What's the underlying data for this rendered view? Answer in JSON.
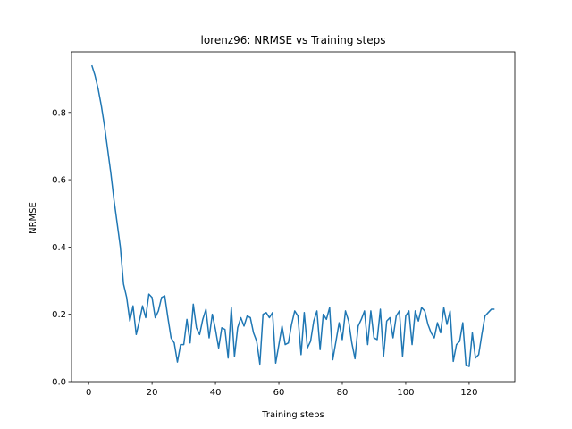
{
  "chart_data": {
    "type": "line",
    "title": "lorenz96: NRMSE vs Training steps",
    "xlabel": "Training steps",
    "ylabel": "NRMSE",
    "xlim": [
      -5.4,
      134.4
    ],
    "ylim": [
      0.0,
      0.98
    ],
    "xticks": [
      0,
      20,
      40,
      60,
      80,
      100,
      120
    ],
    "yticks": [
      0.0,
      0.2,
      0.4,
      0.6,
      0.8
    ],
    "xtick_labels": [
      "0",
      "20",
      "40",
      "60",
      "80",
      "100",
      "120"
    ],
    "ytick_labels": [
      "0.0",
      "0.2",
      "0.4",
      "0.6",
      "0.8"
    ],
    "grid": false,
    "legend": false,
    "line_color": "#1f77b4",
    "series": [
      {
        "x": [
          1,
          2,
          3,
          4,
          5,
          6,
          7,
          8,
          9,
          10,
          11,
          12,
          13,
          14,
          15,
          16,
          17,
          18,
          19,
          20,
          21,
          22,
          23,
          24,
          25,
          26,
          27,
          28,
          29,
          30,
          31,
          32,
          33,
          34,
          35,
          36,
          37,
          38,
          39,
          40,
          41,
          42,
          43,
          44,
          45,
          46,
          47,
          48,
          49,
          50,
          51,
          52,
          53,
          54,
          55,
          56,
          57,
          58,
          59,
          60,
          61,
          62,
          63,
          64,
          65,
          66,
          67,
          68,
          69,
          70,
          71,
          72,
          73,
          74,
          75,
          76,
          77,
          78,
          79,
          80,
          81,
          82,
          83,
          84,
          85,
          86,
          87,
          88,
          89,
          90,
          91,
          92,
          93,
          94,
          95,
          96,
          97,
          98,
          99,
          100,
          101,
          102,
          103,
          104,
          105,
          106,
          107,
          108,
          109,
          110,
          111,
          112,
          113,
          114,
          115,
          116,
          117,
          118,
          119,
          120,
          121,
          122,
          123,
          124,
          125,
          126,
          127,
          128
        ],
        "values": [
          0.94,
          0.91,
          0.87,
          0.82,
          0.76,
          0.69,
          0.62,
          0.54,
          0.47,
          0.4,
          0.29,
          0.25,
          0.18,
          0.225,
          0.14,
          0.18,
          0.225,
          0.19,
          0.26,
          0.25,
          0.19,
          0.21,
          0.25,
          0.255,
          0.19,
          0.13,
          0.115,
          0.058,
          0.11,
          0.11,
          0.185,
          0.115,
          0.23,
          0.16,
          0.14,
          0.185,
          0.215,
          0.13,
          0.2,
          0.155,
          0.1,
          0.16,
          0.155,
          0.07,
          0.22,
          0.075,
          0.16,
          0.19,
          0.165,
          0.195,
          0.19,
          0.145,
          0.12,
          0.052,
          0.2,
          0.205,
          0.19,
          0.205,
          0.055,
          0.11,
          0.165,
          0.11,
          0.115,
          0.17,
          0.21,
          0.195,
          0.08,
          0.205,
          0.1,
          0.12,
          0.18,
          0.21,
          0.095,
          0.2,
          0.185,
          0.22,
          0.065,
          0.12,
          0.175,
          0.125,
          0.21,
          0.18,
          0.115,
          0.068,
          0.165,
          0.185,
          0.21,
          0.11,
          0.21,
          0.13,
          0.125,
          0.215,
          0.075,
          0.18,
          0.19,
          0.13,
          0.195,
          0.21,
          0.075,
          0.195,
          0.21,
          0.11,
          0.21,
          0.18,
          0.22,
          0.21,
          0.17,
          0.145,
          0.13,
          0.175,
          0.145,
          0.22,
          0.17,
          0.21,
          0.06,
          0.11,
          0.12,
          0.175,
          0.05,
          0.045,
          0.145,
          0.07,
          0.08,
          0.14,
          0.195,
          0.205,
          0.215,
          0.215
        ]
      }
    ]
  }
}
